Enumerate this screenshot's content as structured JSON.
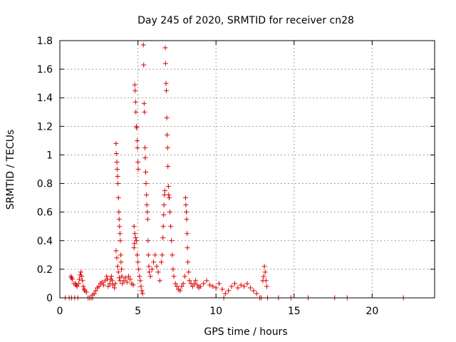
{
  "chart_data": {
    "type": "scatter",
    "title": "Day 245 of 2020, SRMTID for receiver cn28",
    "xlabel": "GPS time / hours",
    "ylabel": "SRMTID / TECUs",
    "xlim": [
      0,
      24
    ],
    "ylim": [
      0,
      1.8
    ],
    "x_ticks": [
      0,
      5,
      10,
      15,
      20
    ],
    "x_tick_labels": [
      "0",
      "5",
      "10",
      "15",
      "20"
    ],
    "y_ticks": [
      0,
      0.2,
      0.4,
      0.6,
      0.8,
      1.0,
      1.2,
      1.4,
      1.6,
      1.8
    ],
    "y_tick_labels": [
      "0",
      "0.2",
      "0.4",
      "0.6",
      "0.8",
      "1",
      "1.2",
      "1.4",
      "1.6",
      "1.8"
    ],
    "grid": true,
    "marker": "+",
    "marker_color": "#dd0000",
    "series": [
      {
        "name": "SRMTID",
        "points": [
          [
            0.35,
            0.0
          ],
          [
            0.6,
            0.0
          ],
          [
            0.75,
            0.0
          ],
          [
            0.95,
            0.0
          ],
          [
            1.15,
            0.0
          ],
          [
            1.8,
            0.0
          ],
          [
            1.9,
            0.0
          ],
          [
            2.0,
            0.0
          ],
          [
            2.1,
            0.0
          ],
          [
            0.7,
            0.15
          ],
          [
            0.75,
            0.14
          ],
          [
            0.8,
            0.13
          ],
          [
            0.9,
            0.1
          ],
          [
            1.0,
            0.1
          ],
          [
            1.05,
            0.09
          ],
          [
            1.1,
            0.08
          ],
          [
            1.2,
            0.1
          ],
          [
            1.25,
            0.13
          ],
          [
            1.3,
            0.16
          ],
          [
            1.35,
            0.18
          ],
          [
            1.4,
            0.15
          ],
          [
            1.45,
            0.12
          ],
          [
            1.5,
            0.08
          ],
          [
            1.55,
            0.06
          ],
          [
            1.6,
            0.05
          ],
          [
            1.7,
            0.04
          ],
          [
            2.1,
            0.02
          ],
          [
            2.2,
            0.03
          ],
          [
            2.3,
            0.05
          ],
          [
            2.4,
            0.07
          ],
          [
            2.5,
            0.08
          ],
          [
            2.6,
            0.1
          ],
          [
            2.7,
            0.11
          ],
          [
            2.8,
            0.09
          ],
          [
            2.9,
            0.12
          ],
          [
            3.0,
            0.15
          ],
          [
            3.05,
            0.13
          ],
          [
            3.1,
            0.08
          ],
          [
            3.2,
            0.1
          ],
          [
            3.25,
            0.13
          ],
          [
            3.3,
            0.15
          ],
          [
            3.35,
            0.12
          ],
          [
            3.4,
            0.09
          ],
          [
            3.5,
            0.07
          ],
          [
            3.55,
            0.1
          ],
          [
            3.6,
            1.08
          ],
          [
            3.62,
            1.01
          ],
          [
            3.65,
            0.95
          ],
          [
            3.67,
            0.9
          ],
          [
            3.7,
            0.85
          ],
          [
            3.72,
            0.8
          ],
          [
            3.75,
            0.7
          ],
          [
            3.78,
            0.6
          ],
          [
            3.8,
            0.55
          ],
          [
            3.82,
            0.5
          ],
          [
            3.85,
            0.45
          ],
          [
            3.87,
            0.4
          ],
          [
            3.9,
            0.3
          ],
          [
            3.92,
            0.25
          ],
          [
            3.95,
            0.2
          ],
          [
            3.97,
            0.15
          ],
          [
            3.6,
            0.33
          ],
          [
            3.65,
            0.28
          ],
          [
            3.7,
            0.22
          ],
          [
            3.75,
            0.18
          ],
          [
            3.8,
            0.14
          ],
          [
            3.85,
            0.12
          ],
          [
            4.0,
            0.1
          ],
          [
            4.1,
            0.12
          ],
          [
            4.2,
            0.14
          ],
          [
            4.3,
            0.11
          ],
          [
            4.4,
            0.15
          ],
          [
            4.5,
            0.13
          ],
          [
            4.6,
            0.1
          ],
          [
            4.7,
            0.09
          ],
          [
            4.75,
            0.35
          ],
          [
            4.78,
            0.38
          ],
          [
            4.8,
            1.49
          ],
          [
            4.82,
            1.45
          ],
          [
            4.85,
            1.37
          ],
          [
            4.87,
            1.3
          ],
          [
            4.9,
            1.2
          ],
          [
            4.92,
            1.19
          ],
          [
            4.95,
            1.1
          ],
          [
            4.97,
            1.05
          ],
          [
            5.0,
            0.95
          ],
          [
            5.02,
            0.9
          ],
          [
            4.75,
            0.5
          ],
          [
            4.8,
            0.45
          ],
          [
            4.85,
            0.42
          ],
          [
            4.9,
            0.4
          ],
          [
            4.95,
            0.3
          ],
          [
            5.0,
            0.25
          ],
          [
            5.05,
            0.2
          ],
          [
            5.1,
            0.15
          ],
          [
            5.15,
            0.12
          ],
          [
            5.2,
            0.08
          ],
          [
            5.25,
            0.05
          ],
          [
            5.3,
            0.03
          ],
          [
            5.35,
            1.77
          ],
          [
            5.37,
            1.63
          ],
          [
            5.4,
            1.36
          ],
          [
            5.42,
            1.3
          ],
          [
            5.45,
            1.05
          ],
          [
            5.47,
            0.98
          ],
          [
            5.5,
            0.88
          ],
          [
            5.52,
            0.8
          ],
          [
            5.55,
            0.72
          ],
          [
            5.57,
            0.65
          ],
          [
            5.6,
            0.6
          ],
          [
            5.62,
            0.55
          ],
          [
            5.65,
            0.4
          ],
          [
            5.67,
            0.3
          ],
          [
            5.7,
            0.22
          ],
          [
            5.72,
            0.18
          ],
          [
            5.8,
            0.15
          ],
          [
            5.9,
            0.2
          ],
          [
            6.0,
            0.25
          ],
          [
            6.1,
            0.3
          ],
          [
            6.2,
            0.22
          ],
          [
            6.3,
            0.18
          ],
          [
            6.4,
            0.12
          ],
          [
            6.5,
            0.25
          ],
          [
            6.55,
            0.3
          ],
          [
            6.6,
            0.42
          ],
          [
            6.62,
            0.5
          ],
          [
            6.65,
            0.58
          ],
          [
            6.67,
            0.65
          ],
          [
            6.7,
            0.72
          ],
          [
            6.72,
            0.75
          ],
          [
            6.75,
            1.75
          ],
          [
            6.77,
            1.64
          ],
          [
            6.8,
            1.5
          ],
          [
            6.82,
            1.45
          ],
          [
            6.85,
            1.26
          ],
          [
            6.87,
            1.14
          ],
          [
            6.9,
            1.05
          ],
          [
            6.92,
            0.92
          ],
          [
            6.95,
            0.78
          ],
          [
            6.97,
            0.72
          ],
          [
            7.0,
            0.7
          ],
          [
            7.05,
            0.6
          ],
          [
            7.1,
            0.5
          ],
          [
            7.15,
            0.4
          ],
          [
            7.2,
            0.3
          ],
          [
            7.25,
            0.2
          ],
          [
            7.3,
            0.15
          ],
          [
            7.4,
            0.1
          ],
          [
            7.5,
            0.08
          ],
          [
            7.6,
            0.06
          ],
          [
            7.7,
            0.05
          ],
          [
            7.8,
            0.08
          ],
          [
            7.9,
            0.1
          ],
          [
            8.0,
            0.15
          ],
          [
            8.05,
            0.7
          ],
          [
            8.07,
            0.65
          ],
          [
            8.1,
            0.6
          ],
          [
            8.12,
            0.55
          ],
          [
            8.15,
            0.45
          ],
          [
            8.17,
            0.35
          ],
          [
            8.2,
            0.25
          ],
          [
            8.25,
            0.18
          ],
          [
            8.3,
            0.12
          ],
          [
            8.4,
            0.1
          ],
          [
            8.5,
            0.08
          ],
          [
            8.6,
            0.1
          ],
          [
            8.7,
            0.12
          ],
          [
            8.8,
            0.09
          ],
          [
            8.9,
            0.07
          ],
          [
            9.0,
            0.08
          ],
          [
            9.2,
            0.1
          ],
          [
            9.4,
            0.12
          ],
          [
            9.6,
            0.09
          ],
          [
            9.8,
            0.08
          ],
          [
            10.0,
            0.07
          ],
          [
            10.2,
            0.1
          ],
          [
            10.4,
            0.06
          ],
          [
            10.5,
            0.0
          ],
          [
            10.6,
            0.03
          ],
          [
            10.8,
            0.05
          ],
          [
            11.0,
            0.08
          ],
          [
            11.2,
            0.1
          ],
          [
            11.4,
            0.07
          ],
          [
            11.6,
            0.09
          ],
          [
            11.8,
            0.08
          ],
          [
            12.0,
            0.1
          ],
          [
            12.2,
            0.07
          ],
          [
            12.4,
            0.05
          ],
          [
            12.6,
            0.03
          ],
          [
            12.8,
            0.0
          ],
          [
            12.9,
            0.0
          ],
          [
            13.0,
            0.12
          ],
          [
            13.05,
            0.15
          ],
          [
            13.1,
            0.22
          ],
          [
            13.15,
            0.18
          ],
          [
            13.2,
            0.12
          ],
          [
            13.25,
            0.08
          ],
          [
            13.3,
            0.0
          ],
          [
            14.0,
            0.0
          ],
          [
            14.8,
            0.0
          ],
          [
            15.9,
            0.0
          ],
          [
            17.6,
            0.0
          ],
          [
            18.4,
            0.0
          ],
          [
            22.0,
            0.0
          ]
        ]
      }
    ]
  }
}
